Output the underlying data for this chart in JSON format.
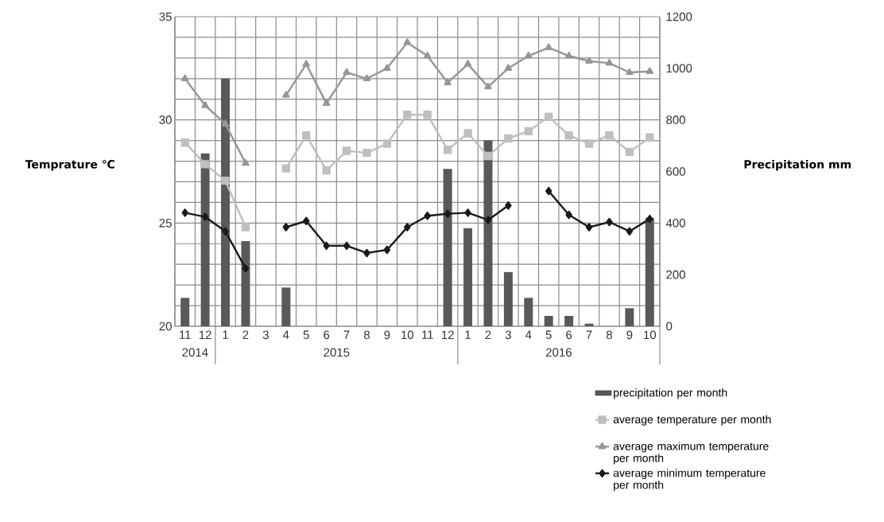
{
  "chart_data": {
    "type": "line",
    "categories": [
      "11",
      "12",
      "1",
      "2",
      "3",
      "4",
      "5",
      "6",
      "7",
      "8",
      "9",
      "10",
      "11",
      "12",
      "1",
      "2",
      "3",
      "4",
      "5",
      "6",
      "7",
      "8",
      "9",
      "10"
    ],
    "ylabel": "Temprature ℃",
    "y2label": "Precipitation   mm",
    "ylim": [
      20,
      35
    ],
    "yticks": [
      20,
      {
        "value": 21,
        "label": null
      },
      {
        "value": 22,
        "label": null
      },
      {
        "value": 23,
        "label": null
      },
      {
        "value": 24,
        "label": null
      },
      25,
      {
        "value": 26,
        "label": null
      },
      {
        "value": 27,
        "label": null
      },
      {
        "value": 28,
        "label": null
      },
      {
        "value": 29,
        "label": null
      },
      30,
      {
        "value": 31,
        "label": null
      },
      {
        "value": 32,
        "label": null
      },
      {
        "value": 33,
        "label": null
      },
      {
        "value": 34,
        "label": null
      },
      35
    ],
    "y2lim": [
      0,
      1200
    ],
    "y2ticks": [
      0,
      200,
      400,
      600,
      800,
      1000,
      1200
    ],
    "grid": true,
    "legend": "bottom right",
    "annotations": [
      "2014",
      "2015",
      "2016"
    ],
    "series": [
      {
        "name": "precipitation per month",
        "type": "bar",
        "axis": "y2",
        "color": "#595959",
        "values": [
          110,
          670,
          960,
          330,
          null,
          150,
          null,
          null,
          null,
          null,
          null,
          null,
          null,
          610,
          380,
          720,
          210,
          110,
          40,
          40,
          10,
          null,
          70,
          420
        ]
      },
      {
        "name": "average temperature per month",
        "color": "#bfbfbf",
        "marker": "square",
        "values": [
          28.9,
          27.85,
          27.05,
          24.8,
          null,
          27.65,
          29.25,
          27.55,
          28.5,
          28.4,
          28.85,
          30.25,
          30.25,
          28.55,
          29.35,
          28.25,
          29.1,
          29.45,
          30.15,
          29.25,
          28.85,
          29.25,
          28.45,
          29.15
        ]
      },
      {
        "name": "average maximum temperature per month",
        "color": "#969696",
        "marker": "triangle",
        "values": [
          32.0,
          30.7,
          29.8,
          27.9,
          null,
          31.2,
          32.7,
          30.8,
          32.3,
          32.0,
          32.5,
          33.75,
          33.1,
          31.8,
          32.7,
          31.6,
          32.5,
          33.1,
          33.5,
          33.1,
          32.85,
          32.75,
          32.3,
          32.35
        ]
      },
      {
        "name": "average minimum temperature per month",
        "color": "#1a1a1a",
        "marker": "diamond",
        "values": [
          25.5,
          25.3,
          24.6,
          22.8,
          null,
          24.8,
          25.1,
          23.9,
          23.9,
          23.55,
          23.7,
          24.8,
          25.35,
          25.45,
          25.5,
          25.15,
          25.85,
          null,
          26.55,
          25.4,
          24.8,
          25.05,
          24.6,
          25.2
        ]
      }
    ]
  }
}
